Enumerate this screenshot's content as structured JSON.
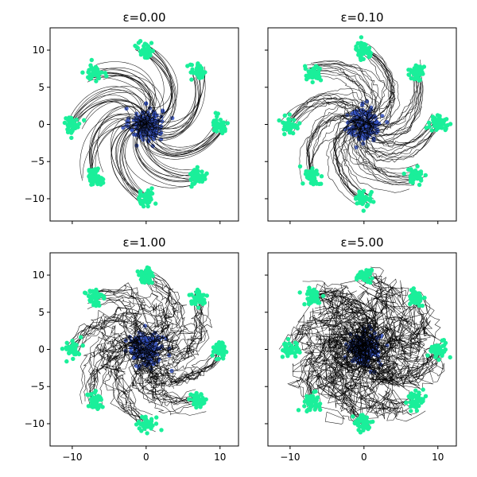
{
  "chart_data": {
    "type": "scatter",
    "layout": "2x2",
    "xlim": [
      -13,
      12.5
    ],
    "ylim": [
      -13,
      13
    ],
    "xticks": [
      -10,
      0,
      10
    ],
    "yticks": [
      -10,
      -5,
      0,
      5,
      10
    ],
    "shared_x": true,
    "shared_y": true,
    "colors": {
      "source": "#3350c0",
      "target": "#1aef9a",
      "trajectory": "#000000"
    },
    "source_cluster": {
      "center": [
        0,
        0
      ],
      "spread": 1.1
    },
    "target_clusters": [
      [
        10,
        0
      ],
      [
        7,
        7
      ],
      [
        0,
        10
      ],
      [
        -7,
        7
      ],
      [
        -10,
        0
      ],
      [
        -7,
        -7
      ],
      [
        0,
        -10
      ],
      [
        7,
        -7
      ]
    ],
    "panels": [
      {
        "title": "ε=0.00",
        "epsilon": 0.0
      },
      {
        "title": "ε=0.10",
        "epsilon": 0.1
      },
      {
        "title": "ε=1.00",
        "epsilon": 1.0
      },
      {
        "title": "ε=5.00",
        "epsilon": 5.0
      }
    ]
  }
}
